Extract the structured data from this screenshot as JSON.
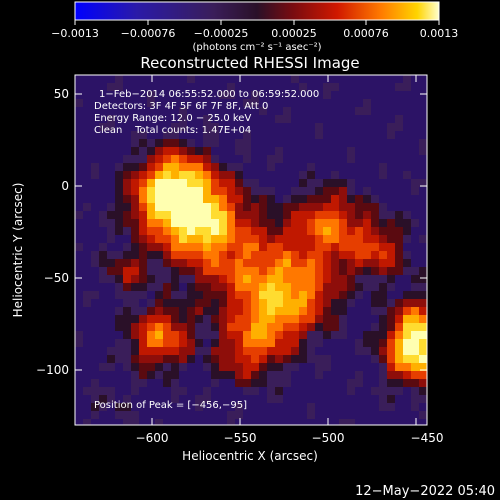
{
  "colorbar": {
    "tick_labels": [
      "−0.0013",
      "−0.00076",
      "−0.00025",
      "0.00025",
      "0.00076",
      "0.0013"
    ],
    "unit_text": "(photons cm⁻² s⁻¹ asec⁻²)",
    "range": [
      -0.0013,
      0.0013
    ]
  },
  "plot": {
    "title": "Reconstructed RHESSI Image",
    "xlabel": "Heliocentric X (arcsec)",
    "ylabel": "Heliocentric Y (arcsec)",
    "x_ticks": [
      "−600",
      "−550",
      "−500",
      "−450"
    ],
    "y_ticks": [
      "50",
      "0",
      "−50",
      "−100"
    ],
    "info_lines": [
      "1−Feb−2014 06:55:52.000 to 06:59:52.000",
      "Detectors: 3F 4F 5F 6F 7F 8F, Att 0",
      "Energy Range: 12.0 − 25.0 keV",
      "Clean    Total counts: 1.47E+04"
    ],
    "peak_label": "Position of Peak = [−456,−95]"
  },
  "footer": {
    "date": "12−May−2022 05:40"
  }
}
